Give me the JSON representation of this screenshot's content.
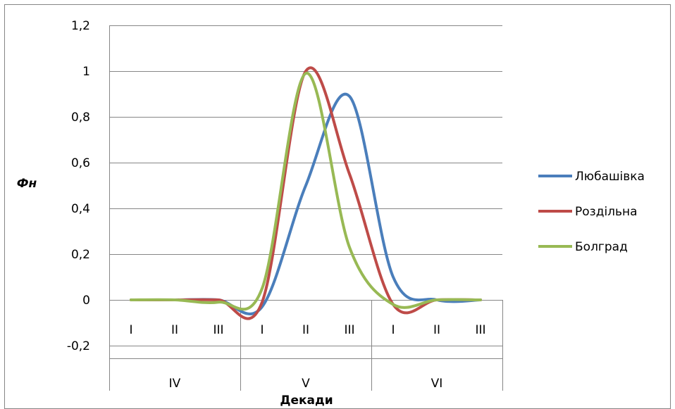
{
  "chart_data": {
    "type": "line",
    "title": "",
    "xlabel": "Декади",
    "ylabel": "Фн",
    "ylim": [
      -0.2,
      1.2
    ],
    "y_ticks": [
      "1,2",
      "1",
      "0,8",
      "0,6",
      "0,4",
      "0,2",
      "0",
      "-0,2"
    ],
    "y_tick_values": [
      1.2,
      1,
      0.8,
      0.6,
      0.4,
      0.2,
      0,
      -0.2
    ],
    "categories": [
      "I",
      "II",
      "III",
      "I",
      "II",
      "III",
      "I",
      "II",
      "III"
    ],
    "groups": [
      {
        "label": "IV",
        "span": 3
      },
      {
        "label": "V",
        "span": 3
      },
      {
        "label": "VI",
        "span": 3
      }
    ],
    "grid": "horizontal",
    "smooth": true,
    "legend_position": "right",
    "series": [
      {
        "name": "Любашівка",
        "color": "#4a7ebb",
        "values": [
          0,
          0,
          0,
          -0.03,
          0.5,
          0.89,
          0.1,
          0,
          0
        ]
      },
      {
        "name": "Роздільна",
        "color": "#be4b48",
        "values": [
          0,
          0,
          0,
          -0.01,
          1.0,
          0.55,
          -0.02,
          0,
          0
        ]
      },
      {
        "name": "Болград",
        "color": "#98b954",
        "values": [
          0,
          0,
          -0.01,
          0.05,
          0.99,
          0.23,
          -0.02,
          0,
          0
        ]
      }
    ]
  }
}
